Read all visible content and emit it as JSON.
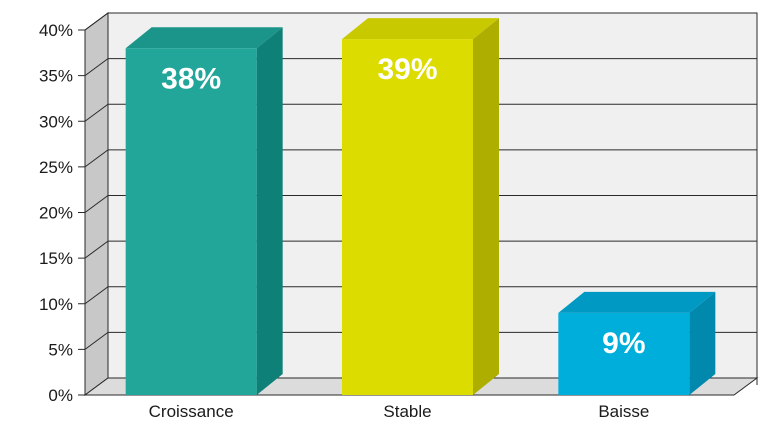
{
  "chart_data": {
    "type": "bar",
    "style": "3d",
    "title": "",
    "xlabel": "",
    "ylabel": "",
    "categories": [
      "Croissance",
      "Stable",
      "Baisse"
    ],
    "values": [
      38,
      39,
      9
    ],
    "data_labels": [
      "38%",
      "39%",
      "9%"
    ],
    "ylim": [
      0,
      40
    ],
    "yticks": [
      0,
      5,
      10,
      15,
      20,
      25,
      30,
      35,
      40
    ],
    "ytick_labels": [
      "0%",
      "5%",
      "10%",
      "15%",
      "20%",
      "25%",
      "30%",
      "35%",
      "40%"
    ],
    "grid": true,
    "legend": "none",
    "colors": [
      {
        "front": "#22a69a",
        "side": "#0e8078",
        "top": "#1b9489"
      },
      {
        "front": "#dcdc00",
        "side": "#aeae00",
        "top": "#c9c900"
      },
      {
        "front": "#00aedb",
        "side": "#0089ad",
        "top": "#0099c4"
      }
    ],
    "wall_color": "#f0f0f0",
    "side_wall_color": "#c8c8c8",
    "floor_color": "#dcdcdc"
  }
}
